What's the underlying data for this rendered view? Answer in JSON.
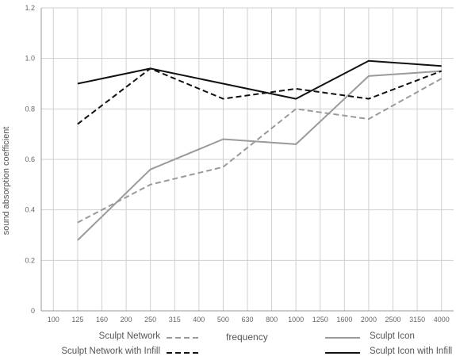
{
  "chart_data": {
    "type": "line",
    "xlabel": "frequency",
    "ylabel": "sound absorption coefficient",
    "categories": [
      "100",
      "125",
      "160",
      "200",
      "250",
      "315",
      "400",
      "500",
      "630",
      "800",
      "1000",
      "1250",
      "1600",
      "2000",
      "2500",
      "3150",
      "4000"
    ],
    "ylim": [
      0,
      1.2
    ],
    "yticks": [
      0,
      0.2,
      0.4,
      0.6,
      0.8,
      1.0,
      1.2
    ],
    "ytick_labels": [
      "0",
      "0.2",
      "0.4",
      "0.6",
      "0.8",
      "1.0",
      "1.2"
    ],
    "grid": true,
    "legend_position": "bottom",
    "series": [
      {
        "name": "Sculpt Network",
        "x": [
          "125",
          "250",
          "500",
          "1000",
          "2000",
          "4000"
        ],
        "values": [
          0.35,
          0.5,
          0.57,
          0.8,
          0.76,
          0.92
        ],
        "color": "#9a9a9a",
        "dash": true
      },
      {
        "name": "Sculpt Icon",
        "x": [
          "125",
          "250",
          "500",
          "1000",
          "2000",
          "4000"
        ],
        "values": [
          0.28,
          0.56,
          0.68,
          0.66,
          0.93,
          0.95
        ],
        "color": "#9a9a9a",
        "dash": false
      },
      {
        "name": "Sculpt Network with Infill",
        "x": [
          "125",
          "250",
          "500",
          "1000",
          "2000",
          "4000"
        ],
        "values": [
          0.74,
          0.96,
          0.84,
          0.88,
          0.84,
          0.95
        ],
        "color": "#111111",
        "dash": true
      },
      {
        "name": "Sculpt Icon with Infill",
        "x": [
          "125",
          "250",
          "500",
          "1000",
          "2000",
          "4000"
        ],
        "values": [
          0.9,
          0.96,
          0.9,
          0.84,
          0.99,
          0.97
        ],
        "color": "#111111",
        "dash": false
      }
    ]
  }
}
